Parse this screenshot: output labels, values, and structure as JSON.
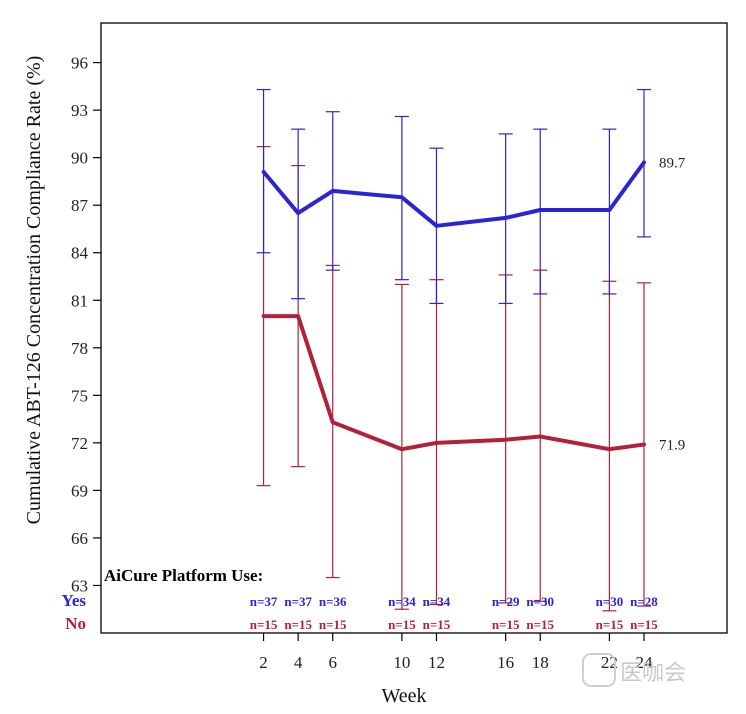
{
  "chart_data": {
    "type": "line",
    "xlabel": "Week",
    "ylabel": "Cumulative ABT-126 Concentration Compliance Rate (%)",
    "x": [
      2,
      4,
      6,
      10,
      12,
      16,
      18,
      22,
      24
    ],
    "xticks": [
      2,
      4,
      6,
      10,
      12,
      16,
      18,
      22,
      24
    ],
    "yticks": [
      63,
      66,
      69,
      72,
      75,
      78,
      81,
      84,
      87,
      90,
      93,
      96
    ],
    "xlim": [
      -7.4,
      28.8
    ],
    "ylim": [
      60,
      98.5
    ],
    "series": [
      {
        "name": "Yes",
        "color": "#2b24d6",
        "values": [
          89.1,
          86.5,
          87.9,
          87.5,
          85.7,
          86.2,
          86.7,
          86.7,
          89.7
        ],
        "lower": [
          84.0,
          81.1,
          82.9,
          82.3,
          80.8,
          80.8,
          81.4,
          81.4,
          85.0
        ],
        "upper": [
          94.3,
          91.8,
          92.9,
          92.6,
          90.6,
          91.5,
          91.8,
          91.8,
          94.3
        ],
        "n": [
          "n=37",
          "n=37",
          "n=36",
          "n=34",
          "n=34",
          "n=29",
          "n=30",
          "n=30",
          "n=28"
        ],
        "end_label": "89.7"
      },
      {
        "name": "No",
        "color": "#b3203a",
        "values": [
          80.0,
          80.0,
          73.3,
          71.6,
          72.0,
          72.2,
          72.4,
          71.6,
          71.9
        ],
        "lower": [
          69.3,
          70.5,
          63.5,
          61.5,
          61.8,
          61.9,
          62.0,
          61.4,
          61.7
        ],
        "upper": [
          90.7,
          89.5,
          83.2,
          82.0,
          82.3,
          82.6,
          82.9,
          82.2,
          82.1
        ],
        "n": [
          "n=15",
          "n=15",
          "n=15",
          "n=15",
          "n=15",
          "n=15",
          "n=15",
          "n=15",
          "n=15"
        ],
        "end_label": "71.9"
      }
    ],
    "annotation_heading": "AiCure Platform Use:"
  },
  "watermark": "医咖会"
}
